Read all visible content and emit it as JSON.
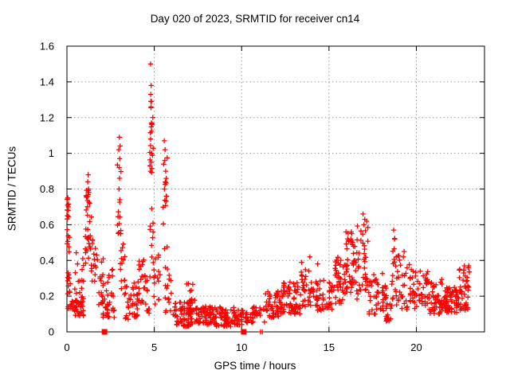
{
  "header": {
    "title": "Day 020 of 2023, SRMTID for receiver cn14"
  },
  "chart_data": {
    "type": "scatter",
    "title": "Day 020 of 2023, SRMTID for receiver cn14",
    "xlabel": "GPS time / hours",
    "ylabel": "SRMTID / TECUs",
    "xlim": [
      0,
      23.9
    ],
    "ylim": [
      0,
      1.6
    ],
    "grid": true,
    "legend": "none",
    "marker": "plus",
    "marker_color": "#ff0000",
    "grid_color": "#9a9a9a",
    "axis_color": "#000000",
    "xticks": [
      {
        "label": "0",
        "v": 0
      },
      {
        "label": "5",
        "v": 5
      },
      {
        "label": "10",
        "v": 10
      },
      {
        "label": "15",
        "v": 15
      },
      {
        "label": "20",
        "v": 20
      }
    ],
    "yticks": [
      {
        "label": "0",
        "v": 0
      },
      {
        "label": "0.2",
        "v": 0.2
      },
      {
        "label": "0.4",
        "v": 0.4
      },
      {
        "label": "0.6",
        "v": 0.6
      },
      {
        "label": "0.8",
        "v": 0.8
      },
      {
        "label": "1",
        "v": 1.0
      },
      {
        "label": "1.2",
        "v": 1.2
      },
      {
        "label": "1.4",
        "v": 1.4
      },
      {
        "label": "1.6",
        "v": 1.6
      }
    ],
    "peak_points": [
      [
        4.79,
        1.5
      ],
      [
        4.82,
        1.38
      ],
      [
        4.8,
        1.33
      ],
      [
        4.84,
        1.29
      ],
      [
        4.81,
        1.26
      ],
      [
        4.83,
        1.17
      ],
      [
        4.79,
        1.08
      ],
      [
        4.85,
        1.0
      ],
      [
        4.82,
        0.95
      ],
      [
        4.78,
        0.9
      ],
      [
        5.57,
        1.07
      ],
      [
        5.62,
        1.02
      ],
      [
        5.6,
        0.96
      ],
      [
        5.65,
        0.9
      ],
      [
        5.63,
        0.84
      ],
      [
        5.58,
        0.8
      ],
      [
        3.0,
        1.09
      ],
      [
        2.97,
        1.02
      ],
      [
        3.02,
        0.97
      ],
      [
        2.99,
        0.92
      ],
      [
        3.01,
        0.86
      ],
      [
        2.98,
        0.8
      ],
      [
        3.03,
        0.74
      ],
      [
        1.22,
        0.88
      ],
      [
        1.19,
        0.84
      ],
      [
        1.24,
        0.8
      ],
      [
        16.95,
        0.66
      ],
      [
        17.05,
        0.63
      ],
      [
        17.0,
        0.6
      ],
      [
        16.3,
        0.55
      ],
      [
        16.25,
        0.52
      ],
      [
        18.7,
        0.57
      ],
      [
        18.75,
        0.52
      ],
      [
        0.05,
        0.75
      ],
      [
        0.08,
        0.7
      ],
      [
        0.03,
        0.65
      ],
      [
        6.95,
        0.27
      ],
      [
        13.9,
        0.42
      ],
      [
        14.35,
        0.38
      ],
      [
        22.75,
        0.37
      ],
      [
        22.7,
        0.33
      ],
      [
        19.3,
        0.45
      ],
      [
        19.25,
        0.42
      ]
    ],
    "zero_square_points_x": [
      2.15,
      10.12
    ],
    "zero_plus_points_x": [
      11.08,
      11.18
    ],
    "bands": [
      {
        "x0": 0.0,
        "x1": 0.15,
        "n": 18,
        "y0": 0.28,
        "y1": 0.75,
        "b": 1.0
      },
      {
        "x0": 0.02,
        "x1": 0.25,
        "n": 14,
        "y0": 0.13,
        "y1": 0.32,
        "b": 1.2
      },
      {
        "x0": 0.25,
        "x1": 0.95,
        "n": 46,
        "y0": 0.09,
        "y1": 0.22,
        "b": 1.3
      },
      {
        "x0": 0.45,
        "x1": 0.95,
        "n": 12,
        "y0": 0.22,
        "y1": 0.45,
        "b": 1.5
      },
      {
        "x0": 1.05,
        "x1": 1.4,
        "n": 26,
        "y0": 0.35,
        "y1": 0.88,
        "b": 1.1
      },
      {
        "x0": 1.1,
        "x1": 1.3,
        "n": 10,
        "y0": 0.68,
        "y1": 0.8,
        "b": 1.0
      },
      {
        "x0": 1.4,
        "x1": 1.7,
        "n": 14,
        "y0": 0.28,
        "y1": 0.52,
        "b": 1.2
      },
      {
        "x0": 1.7,
        "x1": 2.1,
        "n": 20,
        "y0": 0.15,
        "y1": 0.45,
        "b": 1.4
      },
      {
        "x0": 2.05,
        "x1": 2.75,
        "n": 30,
        "y0": 0.08,
        "y1": 0.28,
        "b": 1.4
      },
      {
        "x0": 2.4,
        "x1": 2.62,
        "n": 6,
        "y0": 0.28,
        "y1": 0.45,
        "b": 1.0
      },
      {
        "x0": 2.88,
        "x1": 3.12,
        "n": 16,
        "y0": 0.35,
        "y1": 1.05,
        "b": 1.1
      },
      {
        "x0": 3.1,
        "x1": 3.4,
        "n": 12,
        "y0": 0.15,
        "y1": 0.5,
        "b": 1.3
      },
      {
        "x0": 3.35,
        "x1": 4.15,
        "n": 40,
        "y0": 0.07,
        "y1": 0.28,
        "b": 1.4
      },
      {
        "x0": 4.1,
        "x1": 4.5,
        "n": 18,
        "y0": 0.15,
        "y1": 0.47,
        "b": 1.2
      },
      {
        "x0": 4.5,
        "x1": 4.72,
        "n": 10,
        "y0": 0.1,
        "y1": 0.3,
        "b": 1.3
      },
      {
        "x0": 4.74,
        "x1": 4.95,
        "n": 26,
        "y0": 0.3,
        "y1": 1.3,
        "b": 1.0
      },
      {
        "x0": 4.95,
        "x1": 5.35,
        "n": 16,
        "y0": 0.12,
        "y1": 0.45,
        "b": 1.3
      },
      {
        "x0": 5.5,
        "x1": 5.75,
        "n": 14,
        "y0": 0.45,
        "y1": 1.02,
        "b": 1.0
      },
      {
        "x0": 5.6,
        "x1": 6.05,
        "n": 16,
        "y0": 0.1,
        "y1": 0.4,
        "b": 1.4
      },
      {
        "x0": 6.0,
        "x1": 7.0,
        "n": 55,
        "y0": 0.03,
        "y1": 0.17,
        "b": 1.2
      },
      {
        "x0": 6.85,
        "x1": 7.35,
        "n": 12,
        "y0": 0.15,
        "y1": 0.28,
        "b": 1.2
      },
      {
        "x0": 7.0,
        "x1": 8.2,
        "n": 70,
        "y0": 0.04,
        "y1": 0.15,
        "b": 1.2
      },
      {
        "x0": 8.2,
        "x1": 9.6,
        "n": 80,
        "y0": 0.03,
        "y1": 0.14,
        "b": 1.2
      },
      {
        "x0": 9.6,
        "x1": 10.6,
        "n": 40,
        "y0": 0.04,
        "y1": 0.13,
        "b": 1.2
      },
      {
        "x0": 10.6,
        "x1": 11.35,
        "n": 25,
        "y0": 0.05,
        "y1": 0.14,
        "b": 1.2
      },
      {
        "x0": 11.35,
        "x1": 12.3,
        "n": 55,
        "y0": 0.08,
        "y1": 0.23,
        "b": 1.2
      },
      {
        "x0": 12.3,
        "x1": 13.4,
        "n": 60,
        "y0": 0.1,
        "y1": 0.28,
        "b": 1.2
      },
      {
        "x0": 13.4,
        "x1": 14.15,
        "n": 40,
        "y0": 0.14,
        "y1": 0.4,
        "b": 1.2
      },
      {
        "x0": 14.15,
        "x1": 15.3,
        "n": 50,
        "y0": 0.12,
        "y1": 0.3,
        "b": 1.2
      },
      {
        "x0": 15.3,
        "x1": 15.95,
        "n": 40,
        "y0": 0.15,
        "y1": 0.42,
        "b": 1.2
      },
      {
        "x0": 15.95,
        "x1": 16.55,
        "n": 45,
        "y0": 0.22,
        "y1": 0.56,
        "b": 1.1
      },
      {
        "x0": 16.55,
        "x1": 17.25,
        "n": 40,
        "y0": 0.18,
        "y1": 0.62,
        "b": 1.2
      },
      {
        "x0": 17.25,
        "x1": 18.3,
        "n": 50,
        "y0": 0.1,
        "y1": 0.33,
        "b": 1.3
      },
      {
        "x0": 18.25,
        "x1": 18.6,
        "n": 16,
        "y0": 0.04,
        "y1": 0.16,
        "b": 1.2
      },
      {
        "x0": 18.6,
        "x1": 18.85,
        "n": 14,
        "y0": 0.18,
        "y1": 0.55,
        "b": 1.0
      },
      {
        "x0": 18.85,
        "x1": 19.6,
        "n": 30,
        "y0": 0.12,
        "y1": 0.45,
        "b": 1.3
      },
      {
        "x0": 19.6,
        "x1": 20.7,
        "n": 55,
        "y0": 0.13,
        "y1": 0.35,
        "b": 1.3
      },
      {
        "x0": 20.7,
        "x1": 21.6,
        "n": 50,
        "y0": 0.1,
        "y1": 0.3,
        "b": 1.3
      },
      {
        "x0": 21.6,
        "x1": 22.4,
        "n": 55,
        "y0": 0.1,
        "y1": 0.25,
        "b": 1.2
      },
      {
        "x0": 22.4,
        "x1": 23.05,
        "n": 45,
        "y0": 0.12,
        "y1": 0.37,
        "b": 1.1
      }
    ]
  }
}
